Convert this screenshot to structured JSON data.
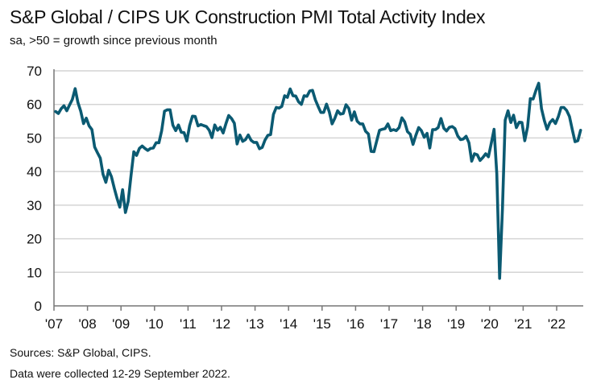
{
  "chart_data": {
    "type": "line",
    "title": "S&P Global / CIPS UK Construction PMI Total Activity Index",
    "subtitle": "sa, >50 = growth since previous month",
    "xlabel": "",
    "ylabel": "",
    "ylim": [
      0,
      70
    ],
    "yticks": [
      "0",
      "10",
      "20",
      "30",
      "40",
      "50",
      "60",
      "70"
    ],
    "xticks": [
      "'07",
      "'08",
      "'09",
      "'10",
      "'11",
      "'12",
      "'13",
      "'14",
      "'15",
      "'16",
      "'17",
      "'18",
      "'19",
      "'20",
      "'21",
      "'22"
    ],
    "grid": "horizontal",
    "color": "#0b5a72",
    "start": "2007-01",
    "frequency": "monthly",
    "values": [
      57.9,
      57.3,
      58.7,
      59.6,
      58.1,
      59.8,
      61.5,
      64.7,
      60.6,
      58.0,
      54.3,
      55.9,
      53.6,
      52.5,
      47.3,
      45.6,
      44.0,
      39.2,
      36.8,
      40.4,
      38.5,
      35.1,
      32.0,
      29.4,
      34.6,
      27.8,
      31.1,
      38.7,
      45.9,
      44.8,
      46.9,
      47.6,
      46.9,
      46.3,
      46.9,
      47.0,
      48.6,
      48.6,
      52.2,
      58.0,
      58.4,
      58.4,
      53.8,
      52.2,
      53.9,
      51.7,
      51.6,
      49.1,
      53.7,
      56.5,
      56.4,
      53.6,
      54.0,
      53.7,
      53.4,
      52.3,
      50.1,
      53.9,
      52.3,
      53.2,
      51.5,
      54.3,
      56.7,
      55.8,
      54.4,
      48.2,
      50.9,
      49.0,
      49.5,
      50.9,
      49.3,
      48.7,
      48.7,
      46.8,
      47.2,
      49.4,
      50.8,
      51.0,
      57.0,
      59.1,
      58.9,
      59.4,
      62.6,
      62.1,
      64.6,
      62.6,
      62.5,
      60.8,
      60.0,
      62.6,
      62.4,
      64.0,
      64.2,
      61.4,
      59.4,
      57.6,
      57.6,
      60.1,
      57.8,
      54.2,
      55.9,
      58.1,
      57.1,
      57.3,
      59.9,
      58.8,
      55.3,
      57.8,
      55.0,
      54.2,
      54.2,
      52.0,
      51.2,
      46.0,
      45.9,
      49.2,
      52.3,
      52.6,
      52.8,
      54.2,
      52.2,
      52.5,
      52.2,
      53.1,
      56.0,
      54.8,
      51.9,
      51.1,
      48.1,
      50.8,
      53.1,
      52.2,
      50.2,
      51.4,
      47.0,
      52.5,
      52.5,
      53.1,
      55.8,
      52.9,
      52.1,
      53.2,
      53.4,
      52.8,
      50.6,
      49.5,
      49.7,
      50.5,
      48.6,
      43.1,
      45.3,
      45.0,
      43.3,
      44.2,
      45.3,
      44.4,
      48.4,
      52.6,
      39.3,
      8.2,
      28.9,
      55.3,
      58.1,
      54.6,
      56.8,
      53.1,
      54.7,
      54.6,
      49.2,
      53.3,
      61.7,
      61.6,
      64.2,
      66.3,
      58.7,
      55.2,
      52.6,
      54.6,
      55.5,
      54.3,
      56.3,
      59.1,
      59.1,
      58.2,
      56.4,
      52.6,
      48.9,
      49.2,
      52.3
    ]
  },
  "footer": {
    "sources": "Sources: S&P Global, CIPS.",
    "note": "Data were collected 12-29 September 2022."
  }
}
